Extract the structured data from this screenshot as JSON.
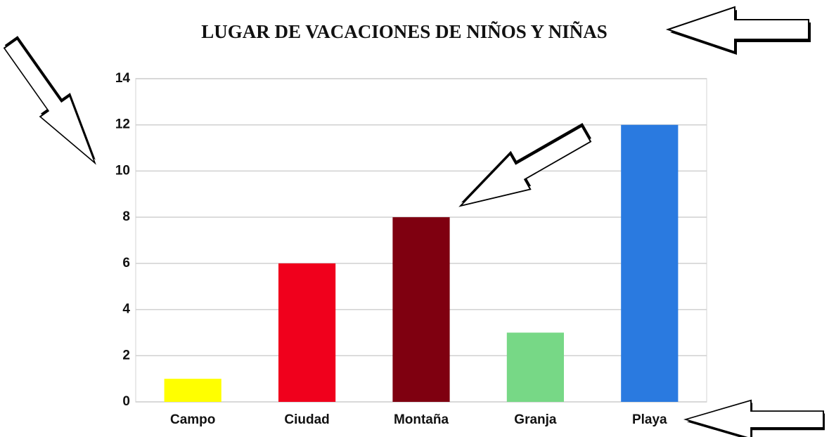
{
  "chart_data": {
    "type": "bar",
    "title": "LUGAR DE VACACIONES DE NIÑOS Y NIÑAS",
    "categories": [
      "Campo",
      "Ciudad",
      "Montaña",
      "Granja",
      "Playa"
    ],
    "values": [
      1,
      6,
      8,
      3,
      12
    ],
    "colors": [
      "#ffff00",
      "#f0001c",
      "#7f0010",
      "#77d886",
      "#2a7ae0"
    ],
    "ylim": [
      0,
      14
    ],
    "yticks": [
      0,
      2,
      4,
      6,
      8,
      10,
      12,
      14
    ],
    "grid": true
  }
}
